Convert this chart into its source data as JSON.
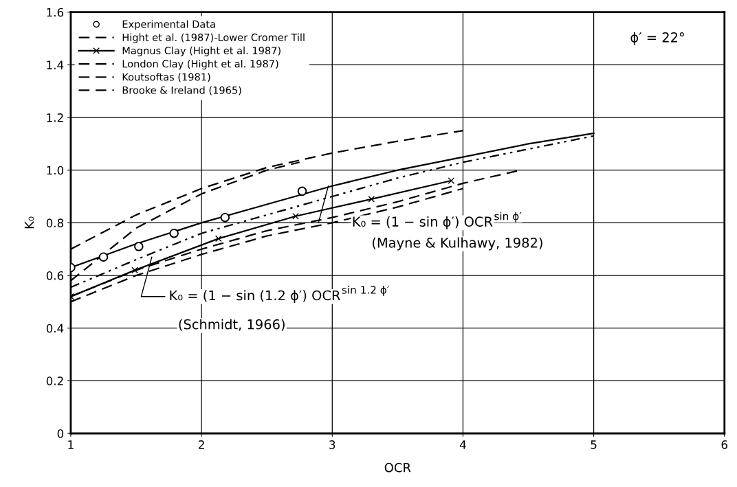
{
  "chart_data": {
    "type": "line",
    "xlabel": "OCR",
    "ylabel": "K₀",
    "xlim": [
      1,
      6
    ],
    "ylim": [
      0,
      1.6
    ],
    "xticks": [
      1,
      2,
      3,
      4,
      5,
      6
    ],
    "yticks": [
      0,
      {
        "value": 0.2,
        "label": "0.2"
      },
      {
        "value": 0.4,
        "label": "0.4"
      },
      {
        "value": 0.6,
        "label": "0.6"
      },
      {
        "value": 0.8,
        "label": "0.8"
      },
      {
        "value": 1.0,
        "label": "1.0"
      },
      {
        "value": 1.2,
        "label": "1.2"
      },
      {
        "value": 1.4,
        "label": "1.4"
      },
      {
        "value": 1.6,
        "label": "1.6"
      }
    ],
    "grid": true,
    "legend": "top left",
    "series": [
      {
        "name": "Experimental Data",
        "type": "scatter",
        "marker": "circle",
        "color": "#000000",
        "x": [
          1,
          1.25,
          1.52,
          1.79,
          2.18,
          2.77
        ],
        "values": [
          0.63,
          0.67,
          0.71,
          0.76,
          0.82,
          0.92
        ]
      },
      {
        "name": "Hight et al. (1987)-Lower Cromer Till",
        "line_style": "dashed",
        "color": "#000000",
        "x": [
          1,
          1.5,
          2,
          2.5,
          3,
          3.5,
          4
        ],
        "values": [
          0.5,
          0.6,
          0.68,
          0.75,
          0.8,
          0.86,
          0.93
        ]
      },
      {
        "name": "Magnus Clay (Hight et al. 1987)",
        "line_style": "solid",
        "marker": "cross",
        "color": "#000000",
        "x": [
          1,
          1.49,
          2.13,
          2.72,
          3.3,
          3.91
        ],
        "values": [
          0.52,
          0.62,
          0.74,
          0.825,
          0.89,
          0.96
        ]
      },
      {
        "name": "London Clay (Hight et al. 1987)",
        "line_style": "dashed",
        "color": "#000000",
        "x": [
          1,
          1.5,
          2,
          2.5,
          2.75
        ],
        "values": [
          0.58,
          0.78,
          0.91,
          1.0,
          1.03
        ]
      },
      {
        "name": "Koutsoftas (1981)",
        "line_style": "dashed",
        "color": "#000000",
        "x": [
          1,
          1.5,
          2,
          2.5,
          3,
          3.5,
          4,
          4.44
        ],
        "values": [
          0.52,
          0.62,
          0.7,
          0.77,
          0.82,
          0.88,
          0.95,
          1.0
        ]
      },
      {
        "name": "Brooke & Ireland (1965)",
        "line_style": "dashed",
        "color": "#000000",
        "x": [
          1,
          1.5,
          2,
          2.5,
          3,
          3.5,
          4
        ],
        "values": [
          0.7,
          0.83,
          0.93,
          1.01,
          1.065,
          1.11,
          1.15
        ]
      },
      {
        "line_style": "solid",
        "color": "#000000",
        "x": [
          1,
          1.5,
          2,
          2.5,
          3,
          3.5,
          4,
          4.5,
          5
        ],
        "values": [
          0.63,
          0.72,
          0.8,
          0.87,
          0.94,
          1.0,
          1.05,
          1.1,
          1.14
        ]
      },
      {
        "line_style": "dotted",
        "color": "#000000",
        "x": [
          1,
          1.5,
          2,
          2.5,
          3,
          3.5,
          4,
          4.5,
          5
        ],
        "values": [
          0.555,
          0.66,
          0.76,
          0.83,
          0.9,
          0.97,
          1.03,
          1.08,
          1.13
        ]
      }
    ],
    "annotations": [
      {
        "text": "K₀ = (1 − sin ϕ′) OCR$^{sin ϕ′}$",
        "x": 2.97,
        "y": 0.94
      },
      "(Mayne & Kulhawy, 1982)",
      {
        "text": "K₀ = (1 − sin (1.2 ϕ′) OCR$^{sin 1.2 ϕ′}$",
        "x": 1.62,
        "y": 0.67
      },
      "(Schmidt, 1966)",
      "ϕ′ = 22°"
    ]
  }
}
